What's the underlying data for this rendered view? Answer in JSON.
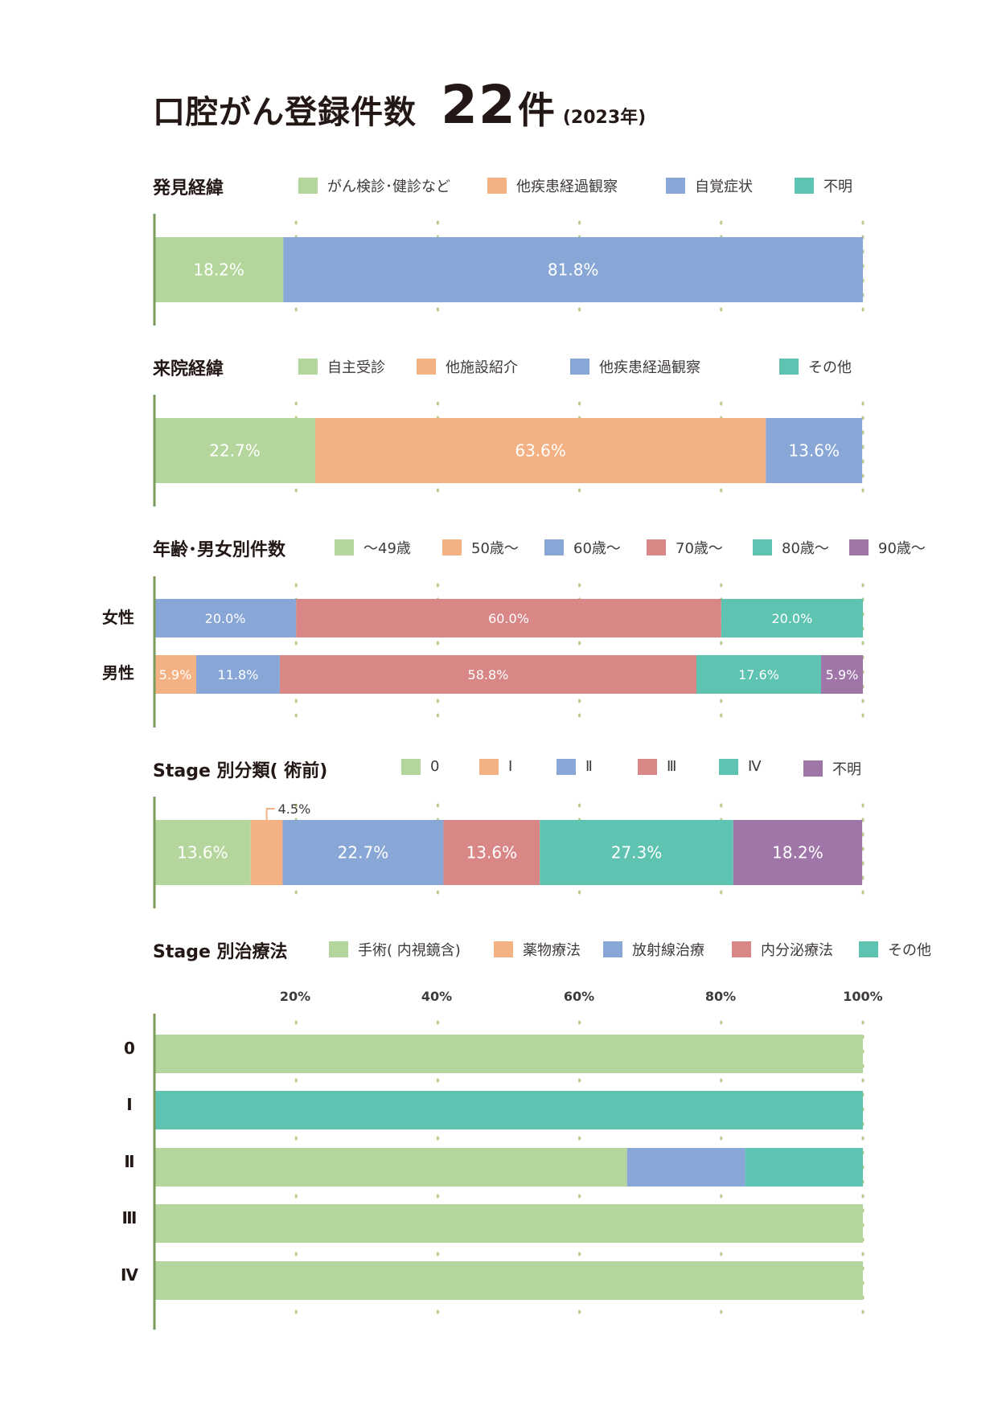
{
  "title": {
    "main": "口腔がん登録件数",
    "count": "22",
    "unit": "件",
    "year": "(2023年)"
  },
  "colors": {
    "green": "#b4d69c",
    "orange": "#f4b183",
    "blue": "#88a6d6",
    "red": "#d88686",
    "teal": "#5ec4b1",
    "purple": "#a076a8",
    "axis": "#7a9b5c",
    "grid": "#b9cc8c"
  },
  "sections": {
    "discovery": {
      "title": "発見経緯",
      "legend": [
        {
          "label": "がん検診･健診など",
          "color": "#b4d69c"
        },
        {
          "label": "他疾患経過観察",
          "color": "#f4b183"
        },
        {
          "label": "自覚症状",
          "color": "#88a6d6"
        },
        {
          "label": "不明",
          "color": "#5ec4b1"
        }
      ]
    },
    "visit": {
      "title": "来院経緯",
      "legend": [
        {
          "label": "自主受診",
          "color": "#b4d69c"
        },
        {
          "label": "他施設紹介",
          "color": "#f4b183"
        },
        {
          "label": "他疾患経過観察",
          "color": "#88a6d6"
        },
        {
          "label": "その他",
          "color": "#5ec4b1"
        }
      ]
    },
    "age": {
      "title": "年齢･男女別件数",
      "legend": [
        {
          "label": "～49歳",
          "color": "#b4d69c"
        },
        {
          "label": "50歳～",
          "color": "#f4b183"
        },
        {
          "label": "60歳～",
          "color": "#88a6d6"
        },
        {
          "label": "70歳～",
          "color": "#d88686"
        },
        {
          "label": "80歳～",
          "color": "#5ec4b1"
        },
        {
          "label": "90歳～",
          "color": "#a076a8"
        }
      ],
      "row_labels": [
        "女性",
        "男性"
      ]
    },
    "stage": {
      "title": "Stage 別分類( 術前)",
      "legend": [
        {
          "label": "0",
          "color": "#b4d69c"
        },
        {
          "label": "Ⅰ",
          "color": "#f4b183"
        },
        {
          "label": "Ⅱ",
          "color": "#88a6d6"
        },
        {
          "label": "Ⅲ",
          "color": "#d88686"
        },
        {
          "label": "Ⅳ",
          "color": "#5ec4b1"
        },
        {
          "label": "不明",
          "color": "#a076a8"
        }
      ]
    },
    "treatment": {
      "title": "Stage 別治療法",
      "legend": [
        {
          "label": "手術( 内視鏡含)",
          "color": "#b4d69c"
        },
        {
          "label": "薬物療法",
          "color": "#f4b183"
        },
        {
          "label": "放射線治療",
          "color": "#88a6d6"
        },
        {
          "label": "内分泌療法",
          "color": "#d88686"
        },
        {
          "label": "その他",
          "color": "#5ec4b1"
        }
      ],
      "ticks": [
        "20%",
        "40%",
        "60%",
        "80%",
        "100%"
      ],
      "row_labels": [
        "0",
        "Ⅰ",
        "Ⅱ",
        "Ⅲ",
        "Ⅳ"
      ]
    }
  },
  "chart_data": [
    {
      "type": "bar",
      "stacked": "100%",
      "orientation": "horizontal",
      "title": "発見経緯",
      "categories": [
        ""
      ],
      "series": [
        {
          "name": "がん検診･健診など",
          "values": [
            18.2
          ],
          "label": "18.2%"
        },
        {
          "name": "他疾患経過観察",
          "values": [
            0
          ]
        },
        {
          "name": "自覚症状",
          "values": [
            81.8
          ],
          "label": "81.8%"
        },
        {
          "name": "不明",
          "values": [
            0
          ]
        }
      ]
    },
    {
      "type": "bar",
      "stacked": "100%",
      "orientation": "horizontal",
      "title": "来院経緯",
      "categories": [
        ""
      ],
      "series": [
        {
          "name": "自主受診",
          "values": [
            22.7
          ],
          "label": "22.7%"
        },
        {
          "name": "他施設紹介",
          "values": [
            63.6
          ],
          "label": "63.6%"
        },
        {
          "name": "他疾患経過観察",
          "values": [
            13.6
          ],
          "label": "13.6%"
        },
        {
          "name": "その他",
          "values": [
            0
          ]
        }
      ]
    },
    {
      "type": "bar",
      "stacked": "100%",
      "orientation": "horizontal",
      "title": "年齢･男女別件数",
      "categories": [
        "女性",
        "男性"
      ],
      "series": [
        {
          "name": "～49歳",
          "values": [
            0,
            0
          ],
          "labels": [
            "",
            ""
          ]
        },
        {
          "name": "50歳～",
          "values": [
            0,
            5.9
          ],
          "labels": [
            "",
            "5.9%"
          ]
        },
        {
          "name": "60歳～",
          "values": [
            20.0,
            11.8
          ],
          "labels": [
            "20.0%",
            "11.8%"
          ]
        },
        {
          "name": "70歳～",
          "values": [
            60.0,
            58.8
          ],
          "labels": [
            "60.0%",
            "58.8%"
          ]
        },
        {
          "name": "80歳～",
          "values": [
            20.0,
            17.6
          ],
          "labels": [
            "20.0%",
            "17.6%"
          ]
        },
        {
          "name": "90歳～",
          "values": [
            0,
            5.9
          ],
          "labels": [
            "",
            "5.9%"
          ]
        }
      ]
    },
    {
      "type": "bar",
      "stacked": "100%",
      "orientation": "horizontal",
      "title": "Stage 別分類( 術前)",
      "categories": [
        ""
      ],
      "series": [
        {
          "name": "0",
          "values": [
            13.6
          ],
          "label": "13.6%"
        },
        {
          "name": "Ⅰ",
          "values": [
            4.5
          ],
          "label": "4.5%",
          "label_outside": true
        },
        {
          "name": "Ⅱ",
          "values": [
            22.7
          ],
          "label": "22.7%"
        },
        {
          "name": "Ⅲ",
          "values": [
            13.6
          ],
          "label": "13.6%"
        },
        {
          "name": "Ⅳ",
          "values": [
            27.3
          ],
          "label": "27.3%"
        },
        {
          "name": "不明",
          "values": [
            18.2
          ],
          "label": "18.2%"
        }
      ]
    },
    {
      "type": "bar",
      "stacked": "100%",
      "orientation": "horizontal",
      "title": "Stage 別治療法",
      "categories": [
        "0",
        "Ⅰ",
        "Ⅱ",
        "Ⅲ",
        "Ⅳ"
      ],
      "xlim": [
        0,
        100
      ],
      "series": [
        {
          "name": "手術( 内視鏡含)",
          "values": [
            100,
            0,
            66.7,
            100,
            100
          ]
        },
        {
          "name": "薬物療法",
          "values": [
            0,
            0,
            0,
            0,
            0
          ]
        },
        {
          "name": "放射線治療",
          "values": [
            0,
            0,
            16.7,
            0,
            0
          ]
        },
        {
          "name": "内分泌療法",
          "values": [
            0,
            0,
            0,
            0,
            0
          ]
        },
        {
          "name": "その他",
          "values": [
            0,
            100,
            16.6,
            0,
            0
          ]
        }
      ]
    }
  ]
}
